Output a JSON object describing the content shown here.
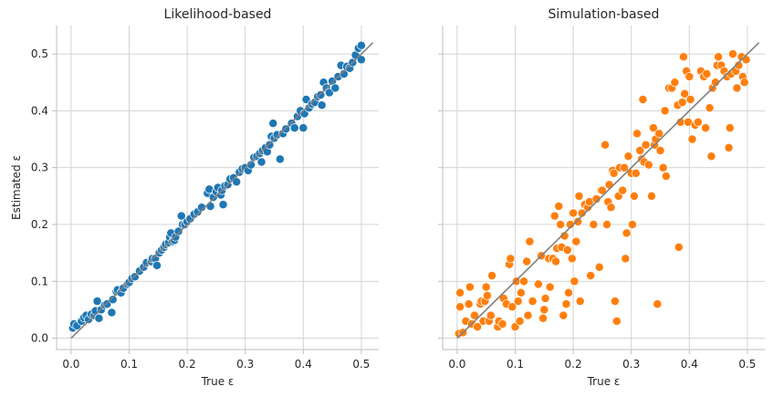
{
  "chart_data": [
    {
      "type": "scatter",
      "title": "Likelihood-based",
      "xlabel": "True ε",
      "ylabel": "Estimated ε",
      "xlim": [
        -0.025,
        0.53
      ],
      "ylim": [
        -0.02,
        0.55
      ],
      "xticks": [
        "0.0",
        "0.1",
        "0.2",
        "0.3",
        "0.4",
        "0.5"
      ],
      "yticks": [
        "0.0",
        "0.1",
        "0.2",
        "0.3",
        "0.4",
        "0.5"
      ],
      "grid": true,
      "color": "#1f77b4",
      "reference_line": {
        "x": [
          0,
          0.52
        ],
        "y": [
          0,
          0.52
        ],
        "color": "#808080"
      },
      "points": [
        [
          0.003,
          0.018
        ],
        [
          0.005,
          0.025
        ],
        [
          0.01,
          0.022
        ],
        [
          0.018,
          0.03
        ],
        [
          0.022,
          0.036
        ],
        [
          0.026,
          0.04
        ],
        [
          0.03,
          0.033
        ],
        [
          0.035,
          0.042
        ],
        [
          0.04,
          0.04
        ],
        [
          0.042,
          0.048
        ],
        [
          0.045,
          0.065
        ],
        [
          0.048,
          0.035
        ],
        [
          0.052,
          0.05
        ],
        [
          0.058,
          0.058
        ],
        [
          0.062,
          0.06
        ],
        [
          0.07,
          0.045
        ],
        [
          0.072,
          0.068
        ],
        [
          0.078,
          0.082
        ],
        [
          0.08,
          0.085
        ],
        [
          0.086,
          0.08
        ],
        [
          0.09,
          0.088
        ],
        [
          0.097,
          0.095
        ],
        [
          0.1,
          0.098
        ],
        [
          0.105,
          0.105
        ],
        [
          0.11,
          0.108
        ],
        [
          0.118,
          0.118
        ],
        [
          0.125,
          0.125
        ],
        [
          0.13,
          0.133
        ],
        [
          0.138,
          0.135
        ],
        [
          0.14,
          0.14
        ],
        [
          0.145,
          0.14
        ],
        [
          0.148,
          0.128
        ],
        [
          0.152,
          0.15
        ],
        [
          0.156,
          0.155
        ],
        [
          0.16,
          0.16
        ],
        [
          0.163,
          0.165
        ],
        [
          0.168,
          0.168
        ],
        [
          0.17,
          0.178
        ],
        [
          0.172,
          0.185
        ],
        [
          0.175,
          0.17
        ],
        [
          0.178,
          0.172
        ],
        [
          0.18,
          0.178
        ],
        [
          0.185,
          0.188
        ],
        [
          0.19,
          0.215
        ],
        [
          0.192,
          0.2
        ],
        [
          0.196,
          0.2
        ],
        [
          0.2,
          0.205
        ],
        [
          0.205,
          0.21
        ],
        [
          0.212,
          0.218
        ],
        [
          0.218,
          0.222
        ],
        [
          0.225,
          0.23
        ],
        [
          0.235,
          0.255
        ],
        [
          0.238,
          0.262
        ],
        [
          0.24,
          0.232
        ],
        [
          0.245,
          0.248
        ],
        [
          0.25,
          0.258
        ],
        [
          0.253,
          0.265
        ],
        [
          0.258,
          0.252
        ],
        [
          0.26,
          0.26
        ],
        [
          0.262,
          0.235
        ],
        [
          0.265,
          0.268
        ],
        [
          0.27,
          0.27
        ],
        [
          0.274,
          0.28
        ],
        [
          0.28,
          0.282
        ],
        [
          0.285,
          0.275
        ],
        [
          0.29,
          0.292
        ],
        [
          0.295,
          0.298
        ],
        [
          0.3,
          0.3
        ],
        [
          0.305,
          0.295
        ],
        [
          0.31,
          0.305
        ],
        [
          0.315,
          0.318
        ],
        [
          0.32,
          0.32
        ],
        [
          0.325,
          0.325
        ],
        [
          0.328,
          0.31
        ],
        [
          0.33,
          0.33
        ],
        [
          0.335,
          0.335
        ],
        [
          0.338,
          0.328
        ],
        [
          0.342,
          0.34
        ],
        [
          0.345,
          0.355
        ],
        [
          0.348,
          0.378
        ],
        [
          0.35,
          0.352
        ],
        [
          0.355,
          0.358
        ],
        [
          0.36,
          0.315
        ],
        [
          0.365,
          0.36
        ],
        [
          0.37,
          0.368
        ],
        [
          0.38,
          0.378
        ],
        [
          0.385,
          0.37
        ],
        [
          0.39,
          0.39
        ],
        [
          0.395,
          0.4
        ],
        [
          0.4,
          0.37
        ],
        [
          0.402,
          0.395
        ],
        [
          0.405,
          0.42
        ],
        [
          0.41,
          0.405
        ],
        [
          0.415,
          0.412
        ],
        [
          0.42,
          0.415
        ],
        [
          0.425,
          0.425
        ],
        [
          0.43,
          0.428
        ],
        [
          0.432,
          0.41
        ],
        [
          0.435,
          0.45
        ],
        [
          0.44,
          0.44
        ],
        [
          0.445,
          0.432
        ],
        [
          0.45,
          0.452
        ],
        [
          0.455,
          0.44
        ],
        [
          0.46,
          0.46
        ],
        [
          0.465,
          0.48
        ],
        [
          0.47,
          0.465
        ],
        [
          0.475,
          0.478
        ],
        [
          0.48,
          0.475
        ],
        [
          0.485,
          0.485
        ],
        [
          0.49,
          0.498
        ],
        [
          0.495,
          0.51
        ],
        [
          0.5,
          0.515
        ],
        [
          0.5,
          0.49
        ]
      ]
    },
    {
      "type": "scatter",
      "title": "Simulation-based",
      "xlabel": "True ε",
      "ylabel": "",
      "xlim": [
        -0.025,
        0.53
      ],
      "ylim": [
        -0.02,
        0.55
      ],
      "xticks": [
        "0.0",
        "0.1",
        "0.2",
        "0.3",
        "0.4",
        "0.5"
      ],
      "yticks": [],
      "grid": true,
      "color": "#ff7f0e",
      "reference_line": {
        "x": [
          0,
          0.52
        ],
        "y": [
          0,
          0.52
        ],
        "color": "#808080"
      },
      "points": [
        [
          0.003,
          0.008
        ],
        [
          0.005,
          0.055
        ],
        [
          0.005,
          0.08
        ],
        [
          0.01,
          0.01
        ],
        [
          0.015,
          0.03
        ],
        [
          0.02,
          0.06
        ],
        [
          0.022,
          0.09
        ],
        [
          0.025,
          0.025
        ],
        [
          0.03,
          0.04
        ],
        [
          0.035,
          0.02
        ],
        [
          0.04,
          0.06
        ],
        [
          0.042,
          0.065
        ],
        [
          0.045,
          0.03
        ],
        [
          0.048,
          0.065
        ],
        [
          0.05,
          0.09
        ],
        [
          0.052,
          0.075
        ],
        [
          0.055,
          0.03
        ],
        [
          0.058,
          0.04
        ],
        [
          0.06,
          0.11
        ],
        [
          0.07,
          0.02
        ],
        [
          0.072,
          0.03
        ],
        [
          0.078,
          0.025
        ],
        [
          0.08,
          0.07
        ],
        [
          0.085,
          0.06
        ],
        [
          0.09,
          0.13
        ],
        [
          0.092,
          0.14
        ],
        [
          0.095,
          0.055
        ],
        [
          0.1,
          0.02
        ],
        [
          0.102,
          0.1
        ],
        [
          0.105,
          0.065
        ],
        [
          0.108,
          0.03
        ],
        [
          0.11,
          0.08
        ],
        [
          0.115,
          0.1
        ],
        [
          0.12,
          0.135
        ],
        [
          0.122,
          0.04
        ],
        [
          0.125,
          0.17
        ],
        [
          0.13,
          0.065
        ],
        [
          0.14,
          0.095
        ],
        [
          0.145,
          0.145
        ],
        [
          0.148,
          0.035
        ],
        [
          0.15,
          0.05
        ],
        [
          0.152,
          0.07
        ],
        [
          0.158,
          0.14
        ],
        [
          0.16,
          0.09
        ],
        [
          0.165,
          0.14
        ],
        [
          0.168,
          0.215
        ],
        [
          0.17,
          0.135
        ],
        [
          0.172,
          0.158
        ],
        [
          0.175,
          0.232
        ],
        [
          0.178,
          0.2
        ],
        [
          0.18,
          0.16
        ],
        [
          0.183,
          0.04
        ],
        [
          0.185,
          0.18
        ],
        [
          0.188,
          0.06
        ],
        [
          0.19,
          0.155
        ],
        [
          0.192,
          0.08
        ],
        [
          0.195,
          0.2
        ],
        [
          0.198,
          0.14
        ],
        [
          0.2,
          0.22
        ],
        [
          0.202,
          0.1
        ],
        [
          0.205,
          0.17
        ],
        [
          0.208,
          0.205
        ],
        [
          0.21,
          0.25
        ],
        [
          0.212,
          0.065
        ],
        [
          0.215,
          0.22
        ],
        [
          0.22,
          0.235
        ],
        [
          0.225,
          0.23
        ],
        [
          0.228,
          0.24
        ],
        [
          0.23,
          0.11
        ],
        [
          0.235,
          0.2
        ],
        [
          0.24,
          0.245
        ],
        [
          0.245,
          0.125
        ],
        [
          0.248,
          0.26
        ],
        [
          0.25,
          0.26
        ],
        [
          0.255,
          0.34
        ],
        [
          0.258,
          0.2
        ],
        [
          0.26,
          0.24
        ],
        [
          0.262,
          0.27
        ],
        [
          0.265,
          0.23
        ],
        [
          0.268,
          0.295
        ],
        [
          0.27,
          0.29
        ],
        [
          0.272,
          0.065
        ],
        [
          0.275,
          0.03
        ],
        [
          0.278,
          0.25
        ],
        [
          0.28,
          0.3
        ],
        [
          0.285,
          0.26
        ],
        [
          0.288,
          0.3
        ],
        [
          0.29,
          0.14
        ],
        [
          0.292,
          0.185
        ],
        [
          0.295,
          0.32
        ],
        [
          0.3,
          0.29
        ],
        [
          0.302,
          0.2
        ],
        [
          0.305,
          0.25
        ],
        [
          0.308,
          0.29
        ],
        [
          0.31,
          0.36
        ],
        [
          0.315,
          0.33
        ],
        [
          0.318,
          0.315
        ],
        [
          0.32,
          0.42
        ],
        [
          0.322,
          0.31
        ],
        [
          0.325,
          0.34
        ],
        [
          0.33,
          0.305
        ],
        [
          0.335,
          0.25
        ],
        [
          0.338,
          0.37
        ],
        [
          0.34,
          0.34
        ],
        [
          0.342,
          0.35
        ],
        [
          0.345,
          0.06
        ],
        [
          0.348,
          0.36
        ],
        [
          0.35,
          0.33
        ],
        [
          0.355,
          0.3
        ],
        [
          0.358,
          0.4
        ],
        [
          0.36,
          0.285
        ],
        [
          0.365,
          0.44
        ],
        [
          0.37,
          0.44
        ],
        [
          0.375,
          0.45
        ],
        [
          0.38,
          0.41
        ],
        [
          0.382,
          0.16
        ],
        [
          0.385,
          0.38
        ],
        [
          0.388,
          0.415
        ],
        [
          0.39,
          0.495
        ],
        [
          0.392,
          0.43
        ],
        [
          0.395,
          0.47
        ],
        [
          0.398,
          0.38
        ],
        [
          0.4,
          0.46
        ],
        [
          0.402,
          0.42
        ],
        [
          0.405,
          0.35
        ],
        [
          0.41,
          0.375
        ],
        [
          0.415,
          0.38
        ],
        [
          0.42,
          0.47
        ],
        [
          0.425,
          0.46
        ],
        [
          0.428,
          0.37
        ],
        [
          0.43,
          0.465
        ],
        [
          0.435,
          0.405
        ],
        [
          0.438,
          0.32
        ],
        [
          0.44,
          0.44
        ],
        [
          0.445,
          0.45
        ],
        [
          0.448,
          0.48
        ],
        [
          0.45,
          0.495
        ],
        [
          0.455,
          0.48
        ],
        [
          0.46,
          0.47
        ],
        [
          0.465,
          0.46
        ],
        [
          0.468,
          0.335
        ],
        [
          0.47,
          0.37
        ],
        [
          0.472,
          0.465
        ],
        [
          0.475,
          0.5
        ],
        [
          0.48,
          0.47
        ],
        [
          0.482,
          0.44
        ],
        [
          0.485,
          0.48
        ],
        [
          0.49,
          0.495
        ],
        [
          0.492,
          0.46
        ],
        [
          0.495,
          0.45
        ],
        [
          0.498,
          0.49
        ]
      ]
    }
  ]
}
